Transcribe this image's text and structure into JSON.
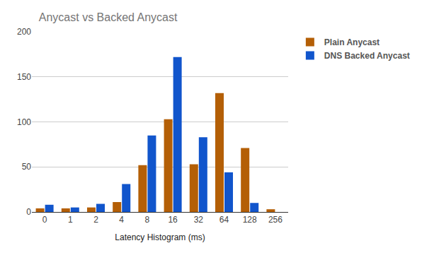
{
  "chart_data": {
    "type": "bar",
    "title": "Anycast vs Backed Anycast",
    "x_label": "Latency Histogram (ms)",
    "categories": [
      "0",
      "1",
      "2",
      "4",
      "8",
      "16",
      "32",
      "64",
      "128",
      "256"
    ],
    "series": [
      {
        "name": "Plain Anycast",
        "color": "#b45f06",
        "values": [
          4,
          4,
          5,
          11,
          52,
          103,
          53,
          132,
          71,
          3
        ]
      },
      {
        "name": "DNS Backed Anycast",
        "color": "#1155cc",
        "values": [
          8,
          5,
          9,
          31,
          85,
          172,
          83,
          44,
          10,
          0
        ]
      }
    ],
    "ylim": [
      0,
      200
    ],
    "yticks": [
      0,
      50,
      100,
      150,
      200
    ],
    "grid": true,
    "legend": "right"
  }
}
